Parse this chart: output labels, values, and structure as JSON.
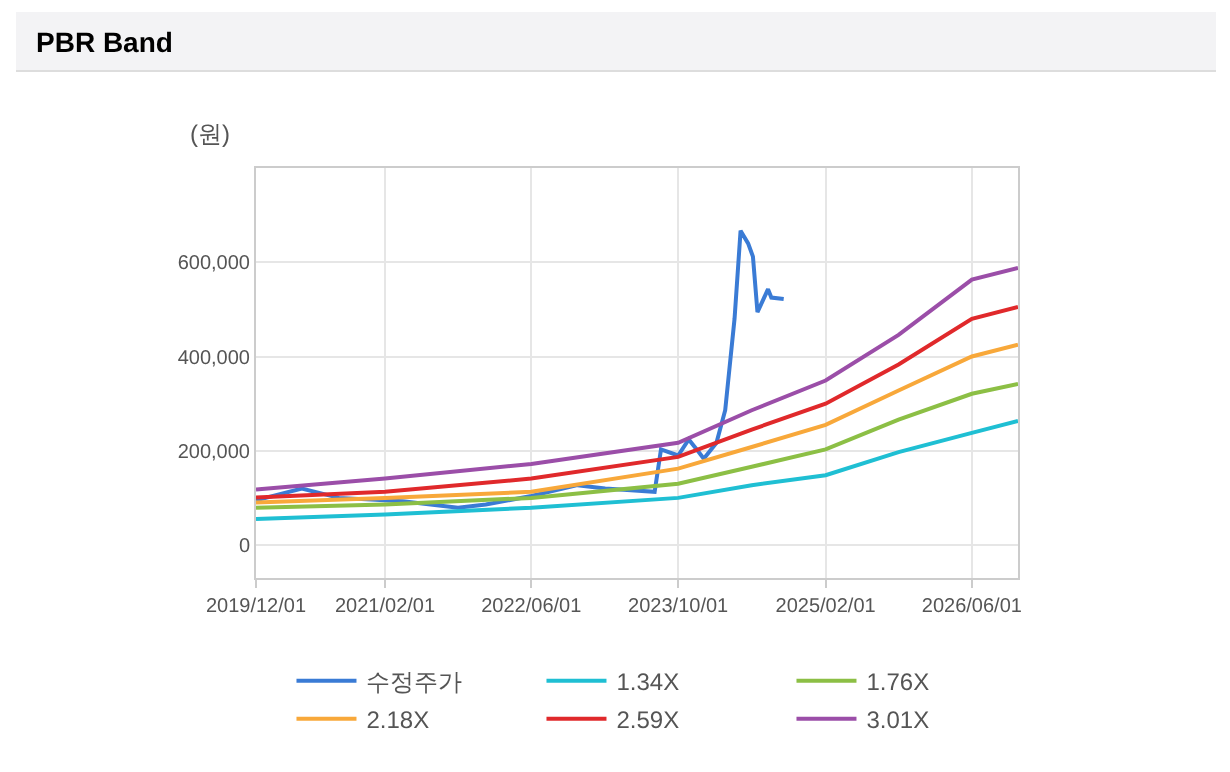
{
  "chart_data": {
    "type": "line",
    "title": "PBR Band",
    "ylabel": "(원)",
    "xlim": [
      "2019-12-01",
      "2026-11-01"
    ],
    "xticks": [
      {
        "value": "2019-12-01",
        "label": "2019/12/01"
      },
      {
        "value": "2021-02-01",
        "label": "2021/02/01"
      },
      {
        "value": "2022-06-01",
        "label": "2022/06/01"
      },
      {
        "value": "2023-10-01",
        "label": "2023/10/01"
      },
      {
        "value": "2025-02-01",
        "label": "2025/02/01"
      },
      {
        "value": "2026-06-01",
        "label": "2026/06/01"
      }
    ],
    "ylim": [
      -70000,
      800000
    ],
    "yticks": [
      {
        "value": 0,
        "label": "0"
      },
      {
        "value": 200000,
        "label": "200,000"
      },
      {
        "value": 400000,
        "label": "400,000"
      },
      {
        "value": 600000,
        "label": "600,000"
      }
    ],
    "grid": true,
    "legend": "bottom",
    "marker": "none",
    "line_style": "solid",
    "series": [
      {
        "name": "수정주가",
        "color": "#3a7bd5",
        "x": [
          "2019-12-01",
          "2020-05-01",
          "2020-09-01",
          "2021-04-01",
          "2021-10-01",
          "2022-01-01",
          "2022-06-01",
          "2022-11-01",
          "2023-02-01",
          "2023-07-15",
          "2023-08-05",
          "2023-10-01",
          "2023-11-05",
          "2023-12-05",
          "2023-12-25",
          "2024-02-05",
          "2024-03-05",
          "2024-04-05",
          "2024-04-25",
          "2024-05-20",
          "2024-06-05",
          "2024-06-20",
          "2024-07-05",
          "2024-07-25",
          "2024-08-05",
          "2024-09-15"
        ],
        "values": [
          95000,
          120000,
          100000,
          93000,
          79000,
          86000,
          104000,
          127000,
          120000,
          113000,
          203000,
          190000,
          224000,
          200000,
          183000,
          217000,
          286000,
          480000,
          667000,
          640000,
          612000,
          494000,
          515000,
          543000,
          525000,
          522000
        ]
      },
      {
        "name": "1.34X",
        "color": "#1fbfd3",
        "x": [
          "2019-12-01",
          "2021-02-01",
          "2022-06-01",
          "2023-10-01",
          "2024-06-01",
          "2025-02-01",
          "2025-10-01",
          "2026-06-01",
          "2026-11-01"
        ],
        "values": [
          55000,
          65000,
          79000,
          100000,
          127000,
          148000,
          197000,
          238000,
          263000
        ]
      },
      {
        "name": "1.76X",
        "color": "#8cbf45",
        "x": [
          "2019-12-01",
          "2021-02-01",
          "2022-06-01",
          "2023-10-01",
          "2024-06-01",
          "2025-02-01",
          "2025-10-01",
          "2026-06-01",
          "2026-11-01"
        ],
        "values": [
          79000,
          86000,
          100000,
          130000,
          166000,
          203000,
          266000,
          321000,
          342000
        ]
      },
      {
        "name": "2.18X",
        "color": "#f8a83a",
        "x": [
          "2019-12-01",
          "2021-02-01",
          "2022-06-01",
          "2023-10-01",
          "2024-06-01",
          "2025-02-01",
          "2025-10-01",
          "2026-06-01",
          "2026-11-01"
        ],
        "values": [
          90000,
          100000,
          113000,
          162000,
          208000,
          255000,
          328000,
          400000,
          425000
        ]
      },
      {
        "name": "2.59X",
        "color": "#e0292b",
        "x": [
          "2019-12-01",
          "2021-02-01",
          "2022-06-01",
          "2023-10-01",
          "2024-06-01",
          "2025-02-01",
          "2025-10-01",
          "2026-06-01",
          "2026-11-01"
        ],
        "values": [
          101000,
          113000,
          141000,
          187000,
          245000,
          300000,
          383000,
          480000,
          505000
        ]
      },
      {
        "name": "3.01X",
        "color": "#9b4ea8",
        "x": [
          "2019-12-01",
          "2021-02-01",
          "2022-06-01",
          "2023-10-01",
          "2024-06-01",
          "2025-02-01",
          "2025-10-01",
          "2026-06-01",
          "2026-11-01"
        ],
        "values": [
          118000,
          141000,
          172000,
          217000,
          286000,
          349000,
          446000,
          563000,
          588000
        ]
      }
    ]
  }
}
